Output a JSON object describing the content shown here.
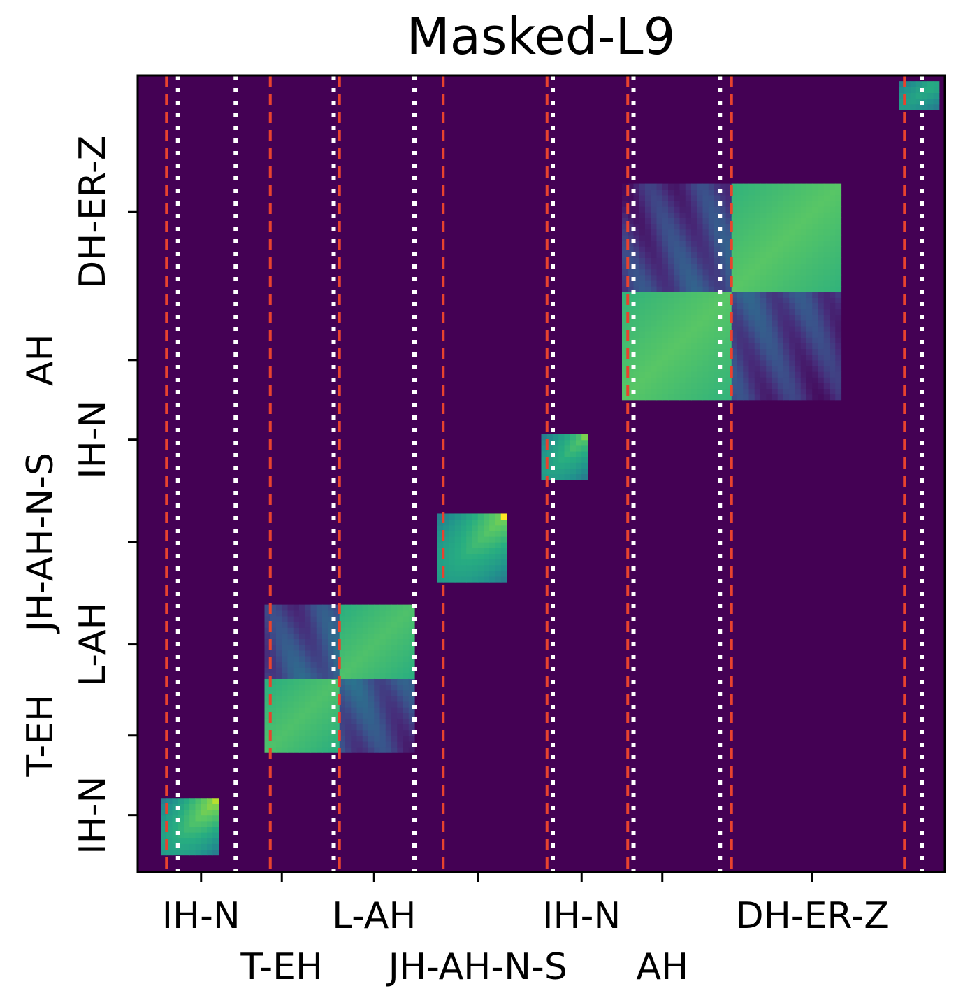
{
  "chart_data": {
    "type": "heatmap",
    "title": "Masked-L9",
    "xlim": [
      0,
      140
    ],
    "ylim": [
      0,
      140
    ],
    "colormap": "viridis",
    "colors": {
      "background": "#440154",
      "red_boundary": "#e8432e",
      "white_boundary": "#ffffff"
    },
    "x_tick_labels": [
      {
        "label": "IH-N",
        "pos": 11,
        "row": 0
      },
      {
        "label": "T-EH",
        "pos": 25,
        "row": 1
      },
      {
        "label": "L-AH",
        "pos": 41,
        "row": 0
      },
      {
        "label": "JH-AH-N-S",
        "pos": 59,
        "row": 1
      },
      {
        "label": "IH-N",
        "pos": 77,
        "row": 0
      },
      {
        "label": "AH",
        "pos": 91,
        "row": 1
      },
      {
        "label": "DH-ER-Z",
        "pos": 117,
        "row": 0
      }
    ],
    "y_tick_labels": [
      {
        "label": "IH-N",
        "pos": 10,
        "col": 1
      },
      {
        "label": "T-EH",
        "pos": 24,
        "col": 0
      },
      {
        "label": "L-AH",
        "pos": 40,
        "col": 1
      },
      {
        "label": "JH-AH-N-S",
        "pos": 58,
        "col": 0
      },
      {
        "label": "IH-N",
        "pos": 76,
        "col": 1
      },
      {
        "label": "AH",
        "pos": 90,
        "col": 0
      },
      {
        "label": "DH-ER-Z",
        "pos": 116,
        "col": 1
      }
    ],
    "red_dashed_boundaries": [
      5,
      23,
      35,
      53,
      71,
      85,
      103,
      133
    ],
    "white_dotted_boundaries": [
      7,
      17,
      34,
      48,
      72,
      86,
      101,
      136
    ],
    "blocks": [
      {
        "name": "IH-N",
        "x0": 4,
        "x1": 14,
        "y0": 3,
        "y1": 13,
        "base": 0.55,
        "diag": 0.85,
        "corner": 0.9,
        "off_low": 0.45
      },
      {
        "name": "T-EH L-AH",
        "x0": 22,
        "x1": 48,
        "y0": 21,
        "y1": 47,
        "base": 0.6,
        "diag": 0.62,
        "corner": 0.6,
        "off_low": 0.15
      },
      {
        "name": "JH-AH-N-S",
        "x0": 52,
        "x1": 64,
        "y0": 51,
        "y1": 63,
        "base": 0.55,
        "diag": 0.8,
        "corner": 1.0,
        "off_low": 0.45
      },
      {
        "name": "IH-N",
        "x0": 70,
        "x1": 78,
        "y0": 69,
        "y1": 77,
        "base": 0.55,
        "diag": 0.75,
        "corner": 0.8,
        "off_low": 0.5
      },
      {
        "name": "AH DH-ER-Z",
        "x0": 84,
        "x1": 122,
        "y0": 83,
        "y1": 121,
        "base": 0.62,
        "diag": 0.75,
        "corner": 0.82,
        "off_low": 0.1
      },
      {
        "name": "end",
        "x0": 132,
        "x1": 139,
        "y0": 134,
        "y1": 139,
        "base": 0.55,
        "diag": 0.65,
        "corner": 0.6,
        "off_low": 0.5
      }
    ]
  }
}
